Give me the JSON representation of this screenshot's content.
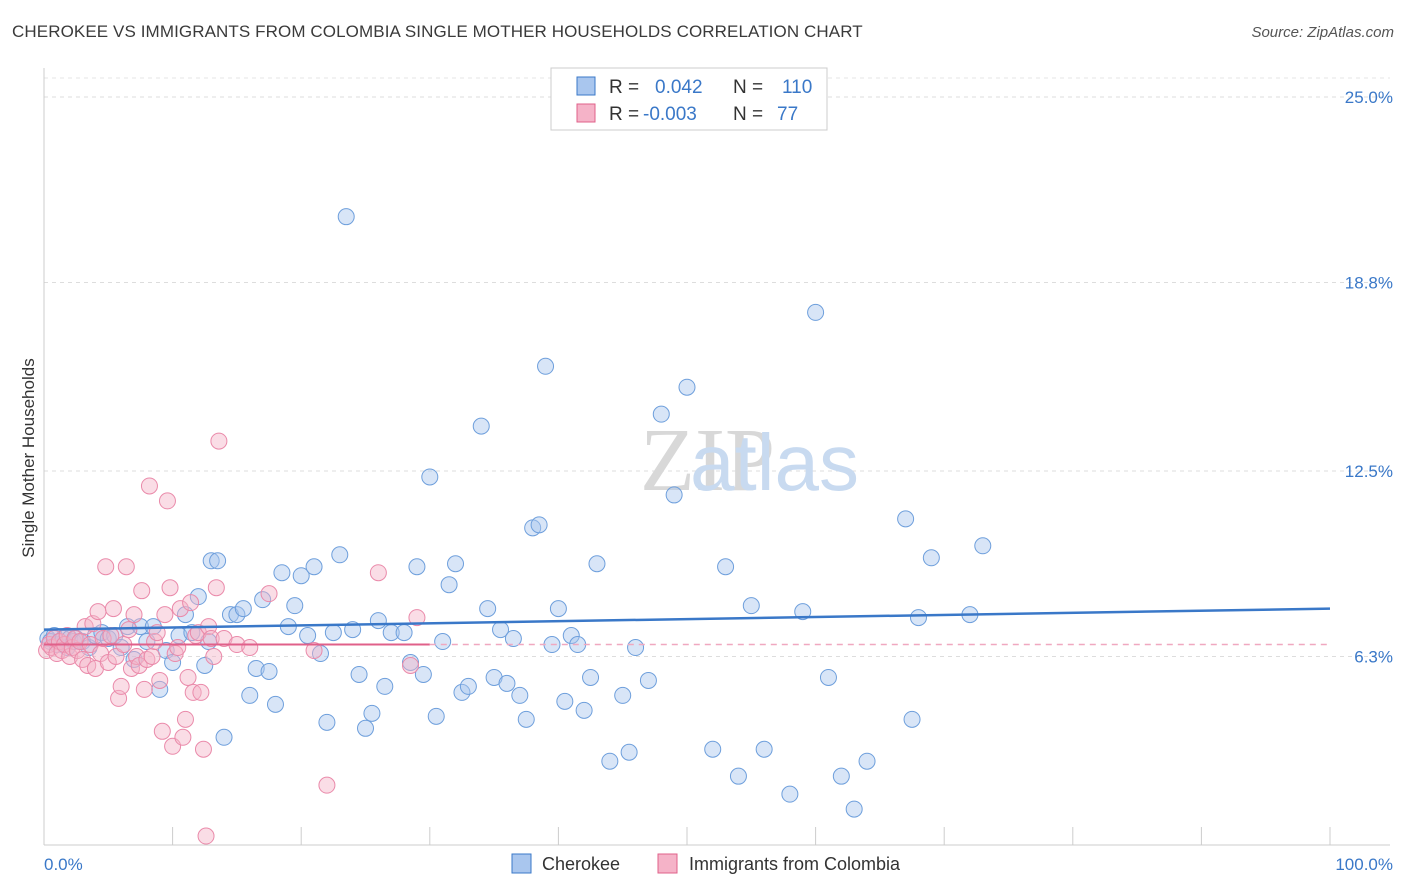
{
  "header": {
    "title": "CHEROKEE VS IMMIGRANTS FROM COLOMBIA SINGLE MOTHER HOUSEHOLDS CORRELATION CHART",
    "source": "Source: ZipAtlas.com"
  },
  "watermark": {
    "zip": "ZIP",
    "atlas": "atlas"
  },
  "colors": {
    "blue": "#3a78c8",
    "pink": "#e0608a",
    "blue_fill": "#a9c6ee",
    "pink_fill": "#f5b3c8"
  },
  "legend": {
    "rows": [
      {
        "r_label": "R =",
        "r_value": "0.042",
        "n_label": "N =",
        "n_value": "110"
      },
      {
        "r_label": "R =",
        "r_value": "-0.003",
        "n_label": "N =",
        "n_value": "77"
      }
    ]
  },
  "chart_data": {
    "type": "scatter",
    "title": "CHEROKEE VS IMMIGRANTS FROM COLOMBIA SINGLE MOTHER HOUSEHOLDS CORRELATION CHART",
    "ylabel": "Single Mother Households",
    "xlabel": "",
    "xlim": [
      0,
      100
    ],
    "ylim": [
      0,
      25.0
    ],
    "x_tick_labels": [
      "0.0%",
      "100.0%"
    ],
    "y_ticks": [
      6.3,
      12.5,
      18.8,
      25.0
    ],
    "y_tick_labels": [
      "6.3%",
      "12.5%",
      "18.8%",
      "25.0%"
    ],
    "grid": true,
    "series": [
      {
        "name": "Cherokee",
        "color": "#3a78c8",
        "trend": {
          "x0": 0,
          "y0": 7.2,
          "x1": 100,
          "y1": 7.9
        },
        "points": [
          [
            0.3,
            6.9
          ],
          [
            0.5,
            6.8
          ],
          [
            0.8,
            7.0
          ],
          [
            1.0,
            6.7
          ],
          [
            1.2,
            6.8
          ],
          [
            1.5,
            6.9
          ],
          [
            1.8,
            6.6
          ],
          [
            2.0,
            6.9
          ],
          [
            2.3,
            6.8
          ],
          [
            2.5,
            6.9
          ],
          [
            3.0,
            6.8
          ],
          [
            3.5,
            6.6
          ],
          [
            4.0,
            7.0
          ],
          [
            4.5,
            7.1
          ],
          [
            5.0,
            6.9
          ],
          [
            5.5,
            7.0
          ],
          [
            6.0,
            6.6
          ],
          [
            6.5,
            7.3
          ],
          [
            7.0,
            6.2
          ],
          [
            7.5,
            7.3
          ],
          [
            8.0,
            6.8
          ],
          [
            8.5,
            7.3
          ],
          [
            9.0,
            5.2
          ],
          [
            9.5,
            6.5
          ],
          [
            10.0,
            6.1
          ],
          [
            10.5,
            7.0
          ],
          [
            11.0,
            7.7
          ],
          [
            11.5,
            7.1
          ],
          [
            12.0,
            8.3
          ],
          [
            12.5,
            6.0
          ],
          [
            12.8,
            6.8
          ],
          [
            13.0,
            9.5
          ],
          [
            13.5,
            9.5
          ],
          [
            14.0,
            3.6
          ],
          [
            14.5,
            7.7
          ],
          [
            15.0,
            7.7
          ],
          [
            15.5,
            7.9
          ],
          [
            16.0,
            5.0
          ],
          [
            16.5,
            5.9
          ],
          [
            17.0,
            8.2
          ],
          [
            17.5,
            5.8
          ],
          [
            18.0,
            4.7
          ],
          [
            18.5,
            9.1
          ],
          [
            19.0,
            7.3
          ],
          [
            19.5,
            8.0
          ],
          [
            20.0,
            9.0
          ],
          [
            20.5,
            7.0
          ],
          [
            21.0,
            9.3
          ],
          [
            21.5,
            6.4
          ],
          [
            22.0,
            4.1
          ],
          [
            22.5,
            7.1
          ],
          [
            23.0,
            9.7
          ],
          [
            23.5,
            21.0
          ],
          [
            24.0,
            7.2
          ],
          [
            24.5,
            5.7
          ],
          [
            25.0,
            3.9
          ],
          [
            25.5,
            4.4
          ],
          [
            26.0,
            7.5
          ],
          [
            26.5,
            5.3
          ],
          [
            27.0,
            7.1
          ],
          [
            28.0,
            7.1
          ],
          [
            28.5,
            6.1
          ],
          [
            29.0,
            9.3
          ],
          [
            29.5,
            5.7
          ],
          [
            30.0,
            12.3
          ],
          [
            30.5,
            4.3
          ],
          [
            31.0,
            6.8
          ],
          [
            31.5,
            8.7
          ],
          [
            32.0,
            9.4
          ],
          [
            32.5,
            5.1
          ],
          [
            33.0,
            5.3
          ],
          [
            34.0,
            14.0
          ],
          [
            34.5,
            7.9
          ],
          [
            35.0,
            5.6
          ],
          [
            35.5,
            7.2
          ],
          [
            36.0,
            5.4
          ],
          [
            36.5,
            6.9
          ],
          [
            37.0,
            5.0
          ],
          [
            37.5,
            4.2
          ],
          [
            38.0,
            10.6
          ],
          [
            38.5,
            10.7
          ],
          [
            39.0,
            16.0
          ],
          [
            39.5,
            6.7
          ],
          [
            40.0,
            7.9
          ],
          [
            40.5,
            4.8
          ],
          [
            41.0,
            7.0
          ],
          [
            41.5,
            6.7
          ],
          [
            42.0,
            4.5
          ],
          [
            42.5,
            5.6
          ],
          [
            43.0,
            9.4
          ],
          [
            44.0,
            2.8
          ],
          [
            45.0,
            5.0
          ],
          [
            45.5,
            3.1
          ],
          [
            46.0,
            6.6
          ],
          [
            47.0,
            5.5
          ],
          [
            48.0,
            14.4
          ],
          [
            49.0,
            11.7
          ],
          [
            50.0,
            15.3
          ],
          [
            52.0,
            3.2
          ],
          [
            53.0,
            9.3
          ],
          [
            54.0,
            2.3
          ],
          [
            55.0,
            8.0
          ],
          [
            56.0,
            3.2
          ],
          [
            58.0,
            1.7
          ],
          [
            59.0,
            7.8
          ],
          [
            60.0,
            17.8
          ],
          [
            61.0,
            5.6
          ],
          [
            62.0,
            2.3
          ],
          [
            63.0,
            1.2
          ],
          [
            64.0,
            2.8
          ],
          [
            67.0,
            10.9
          ],
          [
            67.5,
            4.2
          ],
          [
            68.0,
            7.6
          ],
          [
            69.0,
            9.6
          ],
          [
            72.0,
            7.7
          ],
          [
            73.0,
            10.0
          ]
        ]
      },
      {
        "name": "Immigrants from Colombia",
        "color": "#e0608a",
        "trend": {
          "x0": 0,
          "y0": 6.7,
          "x1": 30,
          "y1": 6.7
        },
        "points": [
          [
            0.2,
            6.5
          ],
          [
            0.4,
            6.7
          ],
          [
            0.6,
            6.6
          ],
          [
            0.8,
            6.9
          ],
          [
            1.0,
            6.4
          ],
          [
            1.2,
            6.8
          ],
          [
            1.4,
            6.5
          ],
          [
            1.6,
            6.7
          ],
          [
            1.8,
            7.0
          ],
          [
            2.0,
            6.3
          ],
          [
            2.2,
            6.6
          ],
          [
            2.4,
            6.9
          ],
          [
            2.6,
            6.5
          ],
          [
            2.8,
            6.8
          ],
          [
            3.0,
            6.2
          ],
          [
            3.2,
            7.3
          ],
          [
            3.4,
            6.0
          ],
          [
            3.6,
            6.7
          ],
          [
            3.8,
            7.4
          ],
          [
            4.0,
            5.9
          ],
          [
            4.2,
            7.8
          ],
          [
            4.4,
            6.4
          ],
          [
            4.6,
            6.9
          ],
          [
            4.8,
            9.3
          ],
          [
            5.0,
            6.1
          ],
          [
            5.2,
            7.0
          ],
          [
            5.4,
            7.9
          ],
          [
            5.6,
            6.3
          ],
          [
            5.8,
            4.9
          ],
          [
            6.0,
            5.3
          ],
          [
            6.2,
            6.7
          ],
          [
            6.4,
            9.3
          ],
          [
            6.6,
            7.2
          ],
          [
            6.8,
            5.9
          ],
          [
            7.0,
            7.7
          ],
          [
            7.2,
            6.3
          ],
          [
            7.4,
            6.0
          ],
          [
            7.6,
            8.5
          ],
          [
            7.8,
            5.2
          ],
          [
            8.0,
            6.2
          ],
          [
            8.2,
            12.0
          ],
          [
            8.4,
            6.3
          ],
          [
            8.6,
            6.8
          ],
          [
            8.8,
            7.1
          ],
          [
            9.0,
            5.5
          ],
          [
            9.2,
            3.8
          ],
          [
            9.4,
            7.7
          ],
          [
            9.6,
            11.5
          ],
          [
            9.8,
            8.6
          ],
          [
            10.0,
            3.3
          ],
          [
            10.2,
            6.4
          ],
          [
            10.4,
            6.6
          ],
          [
            10.6,
            7.9
          ],
          [
            10.8,
            3.6
          ],
          [
            11.0,
            4.2
          ],
          [
            11.2,
            5.6
          ],
          [
            11.4,
            8.1
          ],
          [
            11.6,
            5.1
          ],
          [
            11.8,
            7.0
          ],
          [
            12.0,
            7.1
          ],
          [
            12.2,
            5.1
          ],
          [
            12.4,
            3.2
          ],
          [
            12.6,
            0.3
          ],
          [
            12.8,
            7.3
          ],
          [
            13.0,
            6.9
          ],
          [
            13.2,
            6.3
          ],
          [
            13.4,
            8.6
          ],
          [
            13.6,
            13.5
          ],
          [
            14.0,
            6.9
          ],
          [
            15.0,
            6.7
          ],
          [
            16.0,
            6.6
          ],
          [
            17.5,
            8.4
          ],
          [
            21.0,
            6.5
          ],
          [
            22.0,
            2.0
          ],
          [
            26.0,
            9.1
          ],
          [
            29.0,
            7.6
          ],
          [
            28.5,
            6.0
          ]
        ]
      }
    ]
  },
  "bottom_legend": [
    "Cherokee",
    "Immigrants from Colombia"
  ]
}
